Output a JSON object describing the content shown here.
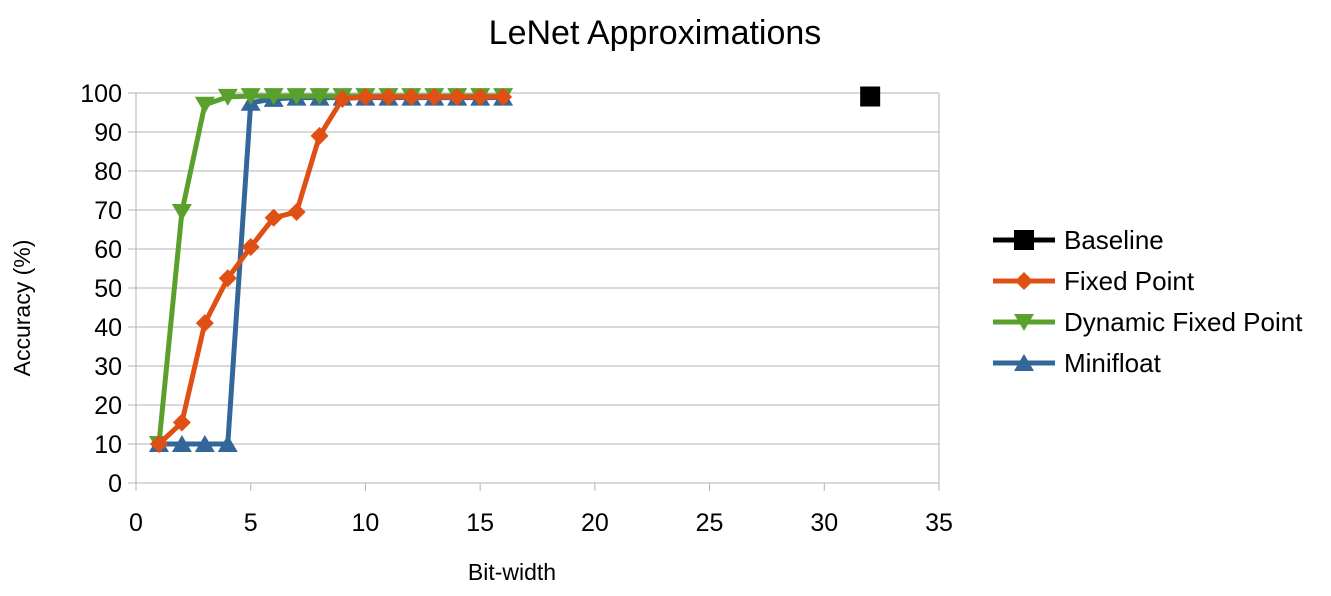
{
  "chart_data": {
    "type": "line",
    "title": "LeNet Approximations",
    "xlabel": "Bit-width",
    "ylabel": "Accuracy (%)",
    "xlim": [
      0,
      35
    ],
    "ylim": [
      0,
      100
    ],
    "xticks": [
      0,
      5,
      10,
      15,
      20,
      25,
      30,
      35
    ],
    "yticks": [
      0,
      10,
      20,
      30,
      40,
      50,
      60,
      70,
      80,
      90,
      100
    ],
    "grid": "horizontal",
    "legend": "right",
    "series": [
      {
        "name": "Baseline",
        "color": "#000000",
        "marker": "square",
        "x": [
          32
        ],
        "y": [
          99.1
        ]
      },
      {
        "name": "Fixed Point",
        "color": "#e04f14",
        "marker": "diamond",
        "x": [
          1,
          2,
          3,
          4,
          5,
          6,
          7,
          8,
          9,
          10,
          11,
          12,
          13,
          14,
          15,
          16
        ],
        "y": [
          10,
          15.5,
          41,
          52.5,
          60.5,
          68,
          69.5,
          89,
          98.5,
          99,
          99,
          99,
          99,
          99,
          99,
          99
        ]
      },
      {
        "name": "Dynamic Fixed Point",
        "color": "#5aa02c",
        "marker": "triangle-down",
        "x": [
          1,
          2,
          3,
          4,
          5,
          6,
          7,
          8,
          9,
          10,
          11,
          12,
          13,
          14,
          15,
          16
        ],
        "y": [
          10,
          69.5,
          97,
          99,
          99.2,
          99.2,
          99.2,
          99.2,
          99.2,
          99.2,
          99.2,
          99.2,
          99.2,
          99.2,
          99.2,
          99.2
        ]
      },
      {
        "name": "Minifloat",
        "color": "#336699",
        "marker": "triangle-up",
        "x": [
          1,
          2,
          3,
          4,
          5,
          6,
          7,
          8,
          9,
          10,
          11,
          12,
          13,
          14,
          15,
          16
        ],
        "y": [
          10,
          10,
          10,
          10,
          97.5,
          98.5,
          98.8,
          98.8,
          98.8,
          98.8,
          98.8,
          98.8,
          98.8,
          98.8,
          98.8,
          98.8
        ]
      }
    ]
  }
}
